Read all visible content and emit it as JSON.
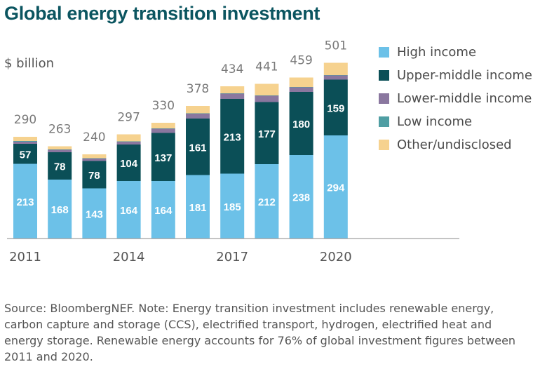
{
  "chart_data": {
    "type": "bar",
    "stacked": true,
    "title": "Global energy transition investment",
    "unit_label": "$ billion",
    "categories": [
      "2011",
      "2012",
      "2013",
      "2014",
      "2015",
      "2016",
      "2017",
      "2018",
      "2019",
      "2020"
    ],
    "x_tick_labels": [
      "2011",
      "",
      "",
      "2014",
      "",
      "",
      "2017",
      "",
      "",
      "2020"
    ],
    "totals": [
      290,
      263,
      240,
      297,
      330,
      378,
      434,
      441,
      459,
      501
    ],
    "series": [
      {
        "name": "High income",
        "color": "#6cc1e8",
        "values": [
          213,
          168,
          143,
          164,
          164,
          181,
          185,
          212,
          238,
          294
        ]
      },
      {
        "name": "Upper-middle income",
        "color": "#0b4f57",
        "values": [
          57,
          78,
          78,
          104,
          137,
          161,
          213,
          177,
          180,
          159
        ]
      },
      {
        "name": "Lower-middle income",
        "color": "#8a779f",
        "values": [
          6,
          7,
          7,
          8,
          12,
          14,
          15,
          18,
          13,
          12
        ]
      },
      {
        "name": "Low income",
        "color": "#4f9ea3",
        "values": [
          2,
          1,
          1,
          1,
          1,
          1,
          1,
          1,
          1,
          1
        ]
      },
      {
        "name": "Other/undisclosed",
        "color": "#f6d28f",
        "values": [
          12,
          9,
          11,
          20,
          16,
          21,
          20,
          33,
          27,
          35
        ]
      }
    ],
    "ylim": [
      0,
      520
    ],
    "legend_position": "right"
  },
  "source_note": "Source: BloombergNEF. Note: Energy transition investment includes renewable energy, carbon capture and storage (CCS), electrified transport, hydrogen, electrified heat and energy storage. Renewable energy accounts for 76% of global investment figures between 2011 and 2020."
}
